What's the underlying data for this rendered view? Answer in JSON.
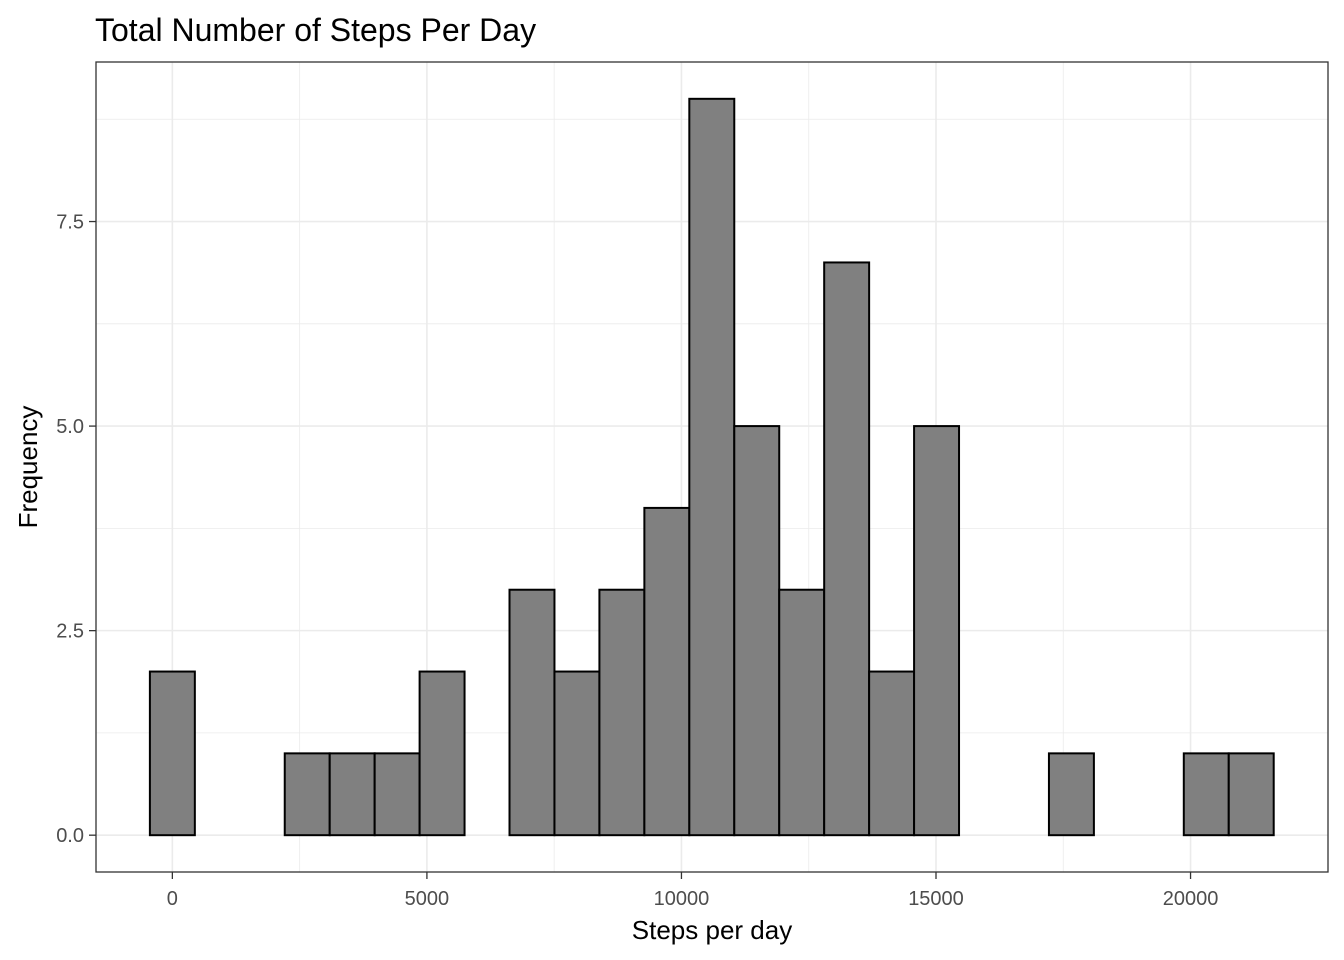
{
  "chart_data": {
    "type": "bar",
    "title": "Total Number of Steps Per Day",
    "xlabel": "Steps per day",
    "ylabel": "Frequency",
    "xlim": [
      -1500,
      22700
    ],
    "ylim": [
      -0.45,
      9.45
    ],
    "x_ticks": [
      0,
      5000,
      10000,
      15000,
      20000
    ],
    "x_tick_labels": [
      "0",
      "5000",
      "10000",
      "15000",
      "20000"
    ],
    "y_ticks": [
      0,
      2.5,
      5,
      7.5
    ],
    "y_tick_labels": [
      "0.0",
      "2.5",
      "5.0",
      "7.5"
    ],
    "bin_width": 883,
    "bin_centers": [
      0,
      883,
      1766,
      2649,
      3532,
      4415,
      5298,
      6181,
      7064,
      7947,
      8830,
      9713,
      10596,
      11479,
      12362,
      13245,
      14128,
      15011,
      15894,
      16777,
      17660,
      18543,
      19426,
      20309,
      21192
    ],
    "values": [
      2,
      0,
      0,
      1,
      1,
      1,
      2,
      0,
      3,
      2,
      3,
      4,
      9,
      5,
      3,
      7,
      2,
      5,
      0,
      0,
      1,
      0,
      0,
      1,
      1
    ],
    "bar_fill": "#808080",
    "bar_stroke": "#000000",
    "grid": true,
    "grid_color": "#ebebeb",
    "panel_border": "#333333"
  }
}
